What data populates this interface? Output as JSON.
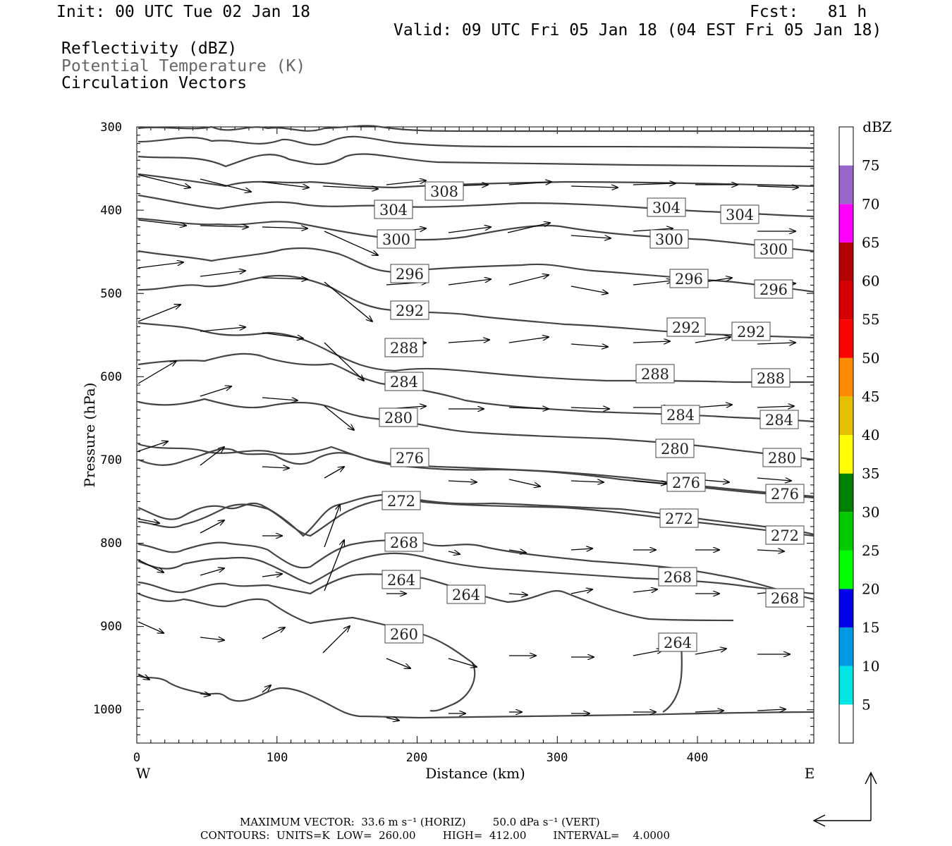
{
  "header": {
    "init": "Init: 00 UTC Tue 02 Jan 18",
    "fcst": "Fcst:   81 h",
    "valid": "Valid: 09 UTC Fri 05 Jan 18 (04 EST Fri 05 Jan 18)",
    "field1": "Reflectivity (dBZ)",
    "field2": "Potential Temperature (K)",
    "field3": "Circulation Vectors"
  },
  "axes": {
    "y_label": "Pressure (hPa)",
    "x_label": "Distance (km)",
    "west": "W",
    "east": "E",
    "y_ticks": [
      "300",
      "400",
      "500",
      "600",
      "700",
      "800",
      "900",
      "1000"
    ],
    "x_ticks": [
      "0",
      "100",
      "200",
      "300",
      "400"
    ]
  },
  "colorbar": {
    "unit": "dBZ",
    "labels": [
      "5",
      "10",
      "15",
      "20",
      "25",
      "30",
      "35",
      "40",
      "45",
      "50",
      "55",
      "60",
      "65",
      "70",
      "75"
    ],
    "colors": [
      "#ffffff",
      "#00e6e6",
      "#0099e6",
      "#0000e6",
      "#00ff00",
      "#00cc00",
      "#008000",
      "#ffff00",
      "#e6bf00",
      "#ff8c00",
      "#ff0000",
      "#d40000",
      "#b30000",
      "#ff00ff",
      "#9966cc",
      "#ffffff"
    ]
  },
  "contour_labels": [
    "308",
    "304",
    "300",
    "296",
    "292",
    "288",
    "284",
    "280",
    "276",
    "272",
    "268",
    "264",
    "260"
  ],
  "footer": {
    "max_vector": "MAXIMUM VECTOR:  33.6 m s⁻¹ (HORIZ)        50.0 dPa s⁻¹ (VERT)",
    "contours": "CONTOURS:  UNITS=K  LOW=  260.00        HIGH=  412.00        INTERVAL=    4.0000"
  },
  "chart_data": {
    "type": "contour",
    "x_range_km": [
      0,
      483
    ],
    "y_range_hpa": [
      300,
      1040
    ],
    "contour_low": 260,
    "contour_high": 412,
    "contour_interval": 4,
    "x_ticks": [
      0,
      100,
      200,
      300,
      400
    ],
    "y_ticks": [
      300,
      400,
      500,
      600,
      700,
      800,
      900,
      1000
    ]
  }
}
